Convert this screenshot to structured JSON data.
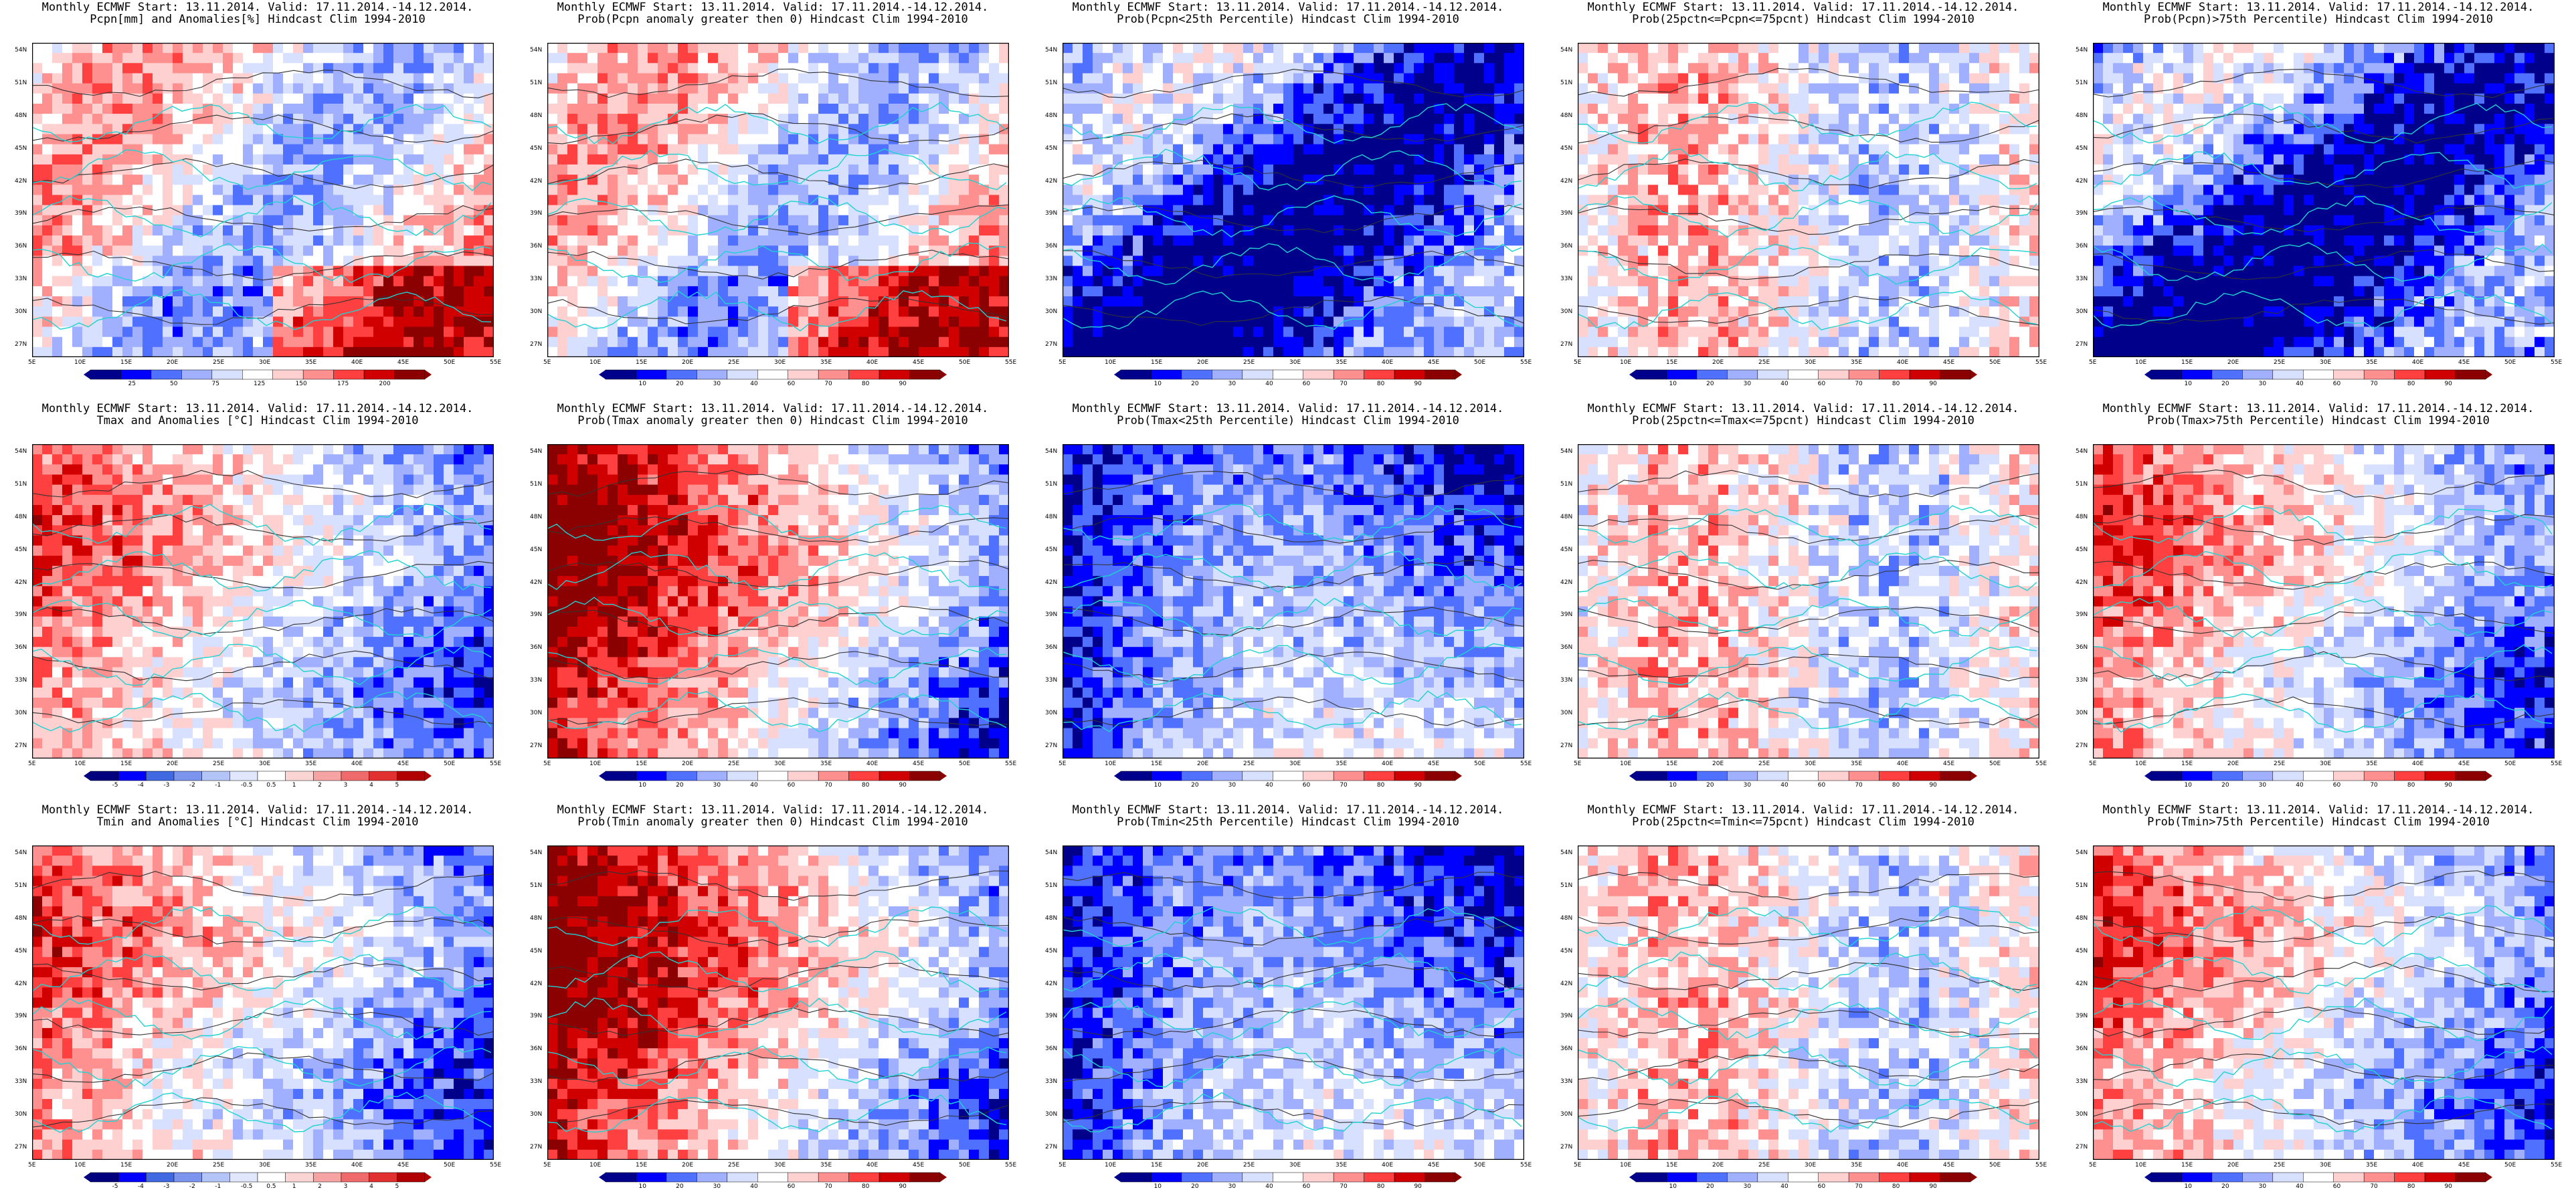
{
  "header_prefix": "Monthly ECMWF Start: 13.11.2014. Valid: 17.11.2014.-14.12.2014.",
  "lat_labels": [
    "54N",
    "51N",
    "48N",
    "45N",
    "42N",
    "39N",
    "36N",
    "33N",
    "30N",
    "27N"
  ],
  "lon_labels": [
    "5E",
    "10E",
    "15E",
    "20E",
    "25E",
    "30E",
    "35E",
    "40E",
    "45E",
    "50E",
    "55E"
  ],
  "colors": {
    "coastline": "#1ed2d2",
    "contour": "#333333",
    "anomaly_scale": [
      "#00007f",
      "#0000ff",
      "#4169e1",
      "#7b95ef",
      "#b4c4f7",
      "#e0e6fb",
      "#ffffff",
      "#fbd4d4",
      "#f5a3a3",
      "#ef6b6b",
      "#e03030",
      "#b00000"
    ],
    "prob_scale": [
      "#00008b",
      "#0000ff",
      "#5070ff",
      "#a0b0ff",
      "#d8e0ff",
      "#ffffff",
      "#ffd0d0",
      "#ff9090",
      "#ff4040",
      "#d00000",
      "#8b0000"
    ]
  },
  "panels": [
    {
      "title1": "Monthly ECMWF Start: 13.11.2014. Valid: 17.11.2014.-14.12.2014.",
      "title2": "Pcpn[mm] and Anomalies[%] Hindcast Clim 1994-2010",
      "ticks": [
        "25",
        "50",
        "75",
        "125",
        "150",
        "175",
        "200"
      ],
      "pattern": "pcpn"
    },
    {
      "title1": "Monthly ECMWF Start: 13.11.2014. Valid: 17.11.2014.-14.12.2014.",
      "title2": "Prob(Pcpn anomaly greater then 0) Hindcast Clim 1994-2010",
      "ticks": [
        "10",
        "20",
        "30",
        "40",
        "60",
        "70",
        "80",
        "90"
      ],
      "pattern": "pcpn"
    },
    {
      "title1": "Monthly ECMWF Start: 13.11.2014. Valid: 17.11.2014.-14.12.2014.",
      "title2": "Prob(Pcpn<25th Percentile) Hindcast Clim 1994-2010",
      "ticks": [
        "10",
        "20",
        "30",
        "40",
        "60",
        "70",
        "80",
        "90"
      ],
      "pattern": "blue"
    },
    {
      "title1": "Monthly ECMWF Start: 13.11.2014. Valid: 17.11.2014.-14.12.2014.",
      "title2": "Prob(25pctn<=Pcpn<=75pcnt) Hindcast Clim 1994-2010",
      "ticks": [
        "10",
        "20",
        "30",
        "40",
        "60",
        "70",
        "80",
        "90"
      ],
      "pattern": "mixed"
    },
    {
      "title1": "Monthly ECMWF Start: 13.11.2014. Valid: 17.11.2014.-14.12.2014.",
      "title2": "Prob(Pcpn)>75th Percentile) Hindcast Clim 1994-2010",
      "ticks": [
        "10",
        "20",
        "30",
        "40",
        "60",
        "70",
        "80",
        "90"
      ],
      "pattern": "blue"
    },
    {
      "title1": "Monthly ECMWF Start: 13.11.2014. Valid: 17.11.2014.-14.12.2014.",
      "title2": "Tmax and Anomalies [°C] Hindcast Clim 1994-2010",
      "ticks": [
        "-5",
        "-4",
        "-3",
        "-2",
        "-1",
        "-0.5",
        "0.5",
        "1",
        "2",
        "3",
        "4",
        "5"
      ],
      "pattern": "warmwest"
    },
    {
      "title1": "Monthly ECMWF Start: 13.11.2014. Valid: 17.11.2014.-14.12.2014.",
      "title2": "Prob(Tmax anomaly greater then 0) Hindcast Clim 1994-2010",
      "ticks": [
        "10",
        "20",
        "30",
        "40",
        "60",
        "70",
        "80",
        "90"
      ],
      "pattern": "hotwest"
    },
    {
      "title1": "Monthly ECMWF Start: 13.11.2014. Valid: 17.11.2014.-14.12.2014.",
      "title2": "Prob(Tmax<25th Percentile) Hindcast Clim 1994-2010",
      "ticks": [
        "10",
        "20",
        "30",
        "40",
        "60",
        "70",
        "80",
        "90"
      ],
      "pattern": "bluewest"
    },
    {
      "title1": "Monthly ECMWF Start: 13.11.2014. Valid: 17.11.2014.-14.12.2014.",
      "title2": "Prob(25pctn<=Tmax<=75pcnt) Hindcast Clim 1994-2010",
      "ticks": [
        "10",
        "20",
        "30",
        "40",
        "60",
        "70",
        "80",
        "90"
      ],
      "pattern": "mixed"
    },
    {
      "title1": "Monthly ECMWF Start: 13.11.2014. Valid: 17.11.2014.-14.12.2014.",
      "title2": "Prob(Tmax>75th Percentile) Hindcast Clim 1994-2010",
      "ticks": [
        "10",
        "20",
        "30",
        "40",
        "60",
        "70",
        "80",
        "90"
      ],
      "pattern": "warmwest"
    },
    {
      "title1": "Monthly ECMWF Start: 13.11.2014. Valid: 17.11.2014.-14.12.2014.",
      "title2": "Tmin and Anomalies [°C] Hindcast Clim 1994-2010",
      "ticks": [
        "-5",
        "-4",
        "-3",
        "-2",
        "-1",
        "-0.5",
        "0.5",
        "1",
        "2",
        "3",
        "4",
        "5"
      ],
      "pattern": "warmwest"
    },
    {
      "title1": "Monthly ECMWF Start: 13.11.2014. Valid: 17.11.2014.-14.12.2014.",
      "title2": "Prob(Tmin anomaly greater then 0) Hindcast Clim 1994-2010",
      "ticks": [
        "10",
        "20",
        "30",
        "40",
        "60",
        "70",
        "80",
        "90"
      ],
      "pattern": "hotwest"
    },
    {
      "title1": "Monthly ECMWF Start: 13.11.2014. Valid: 17.11.2014.-14.12.2014.",
      "title2": "Prob(Tmin<25th Percentile) Hindcast Clim 1994-2010",
      "ticks": [
        "10",
        "20",
        "30",
        "40",
        "60",
        "70",
        "80",
        "90"
      ],
      "pattern": "bluewest"
    },
    {
      "title1": "Monthly ECMWF Start: 13.11.2014. Valid: 17.11.2014.-14.12.2014.",
      "title2": "Prob(25pctn<=Tmin<=75pcnt) Hindcast Clim 1994-2010",
      "ticks": [
        "10",
        "20",
        "30",
        "40",
        "60",
        "70",
        "80",
        "90"
      ],
      "pattern": "mixed"
    },
    {
      "title1": "Monthly ECMWF Start: 13.11.2014. Valid: 17.11.2014.-14.12.2014.",
      "title2": "Prob(Tmin>75th Percentile) Hindcast Clim 1994-2010",
      "ticks": [
        "10",
        "20",
        "30",
        "40",
        "60",
        "70",
        "80",
        "90"
      ],
      "pattern": "warmwest"
    }
  ]
}
